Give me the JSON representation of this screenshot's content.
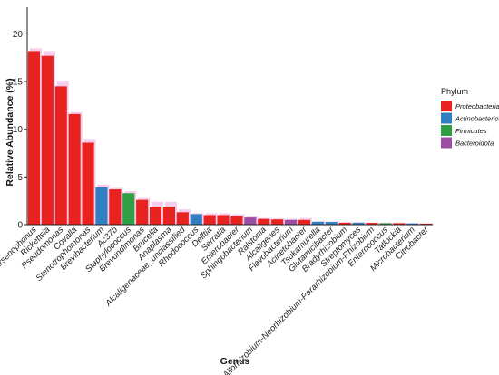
{
  "chart_data": {
    "type": "bar",
    "xlabel": "Genus",
    "ylabel": "Relative Abundance (%)",
    "ylim": [
      0,
      22.8
    ],
    "yticks": [
      0,
      5,
      10,
      15,
      20
    ],
    "grid": false,
    "legend_title": "Phylum",
    "legend_position": "right",
    "legend": [
      {
        "name": "Proteobacteria",
        "color": "#e8231f"
      },
      {
        "name": "Actinobacteriota",
        "color": "#2f7fc1"
      },
      {
        "name": "Firmicutes",
        "color": "#2ea043"
      },
      {
        "name": "Bacteroidota",
        "color": "#9b4ea3"
      }
    ],
    "categories": [
      "Arsenophonus",
      "Rickettsia",
      "Pseudomonas",
      "Covalla",
      "Stenotrophomonas",
      "Brevibacterium",
      "Ac37b",
      "Staphylococcus",
      "Brevundimonas",
      "Brucella",
      "Anaplasma",
      "Alcaligenaceae_unclassified",
      "Rhodococcus",
      "Delftia",
      "Serratia",
      "Enterobacter",
      "Sphingobacterium",
      "Ralstonia",
      "Alcaligenes",
      "Flavobacterium",
      "Acinetobacter",
      "Tsukamurella",
      "Glutamicibacter",
      "Bradyrhizobium",
      "Streptomyces",
      "Allorhizobium-Neorhizobium-Pararhizobium-Rhizobium",
      "Enterococcus",
      "Tatlockia",
      "Microbacterium",
      "Citrobacter"
    ],
    "phylum": [
      "Proteobacteria",
      "Proteobacteria",
      "Proteobacteria",
      "Proteobacteria",
      "Proteobacteria",
      "Actinobacteriota",
      "Proteobacteria",
      "Firmicutes",
      "Proteobacteria",
      "Proteobacteria",
      "Proteobacteria",
      "Proteobacteria",
      "Actinobacteriota",
      "Proteobacteria",
      "Proteobacteria",
      "Proteobacteria",
      "Bacteroidota",
      "Proteobacteria",
      "Proteobacteria",
      "Bacteroidota",
      "Proteobacteria",
      "Actinobacteriota",
      "Actinobacteriota",
      "Proteobacteria",
      "Actinobacteriota",
      "Proteobacteria",
      "Firmicutes",
      "Proteobacteria",
      "Actinobacteriota",
      "Proteobacteria"
    ],
    "values": [
      18.2,
      17.7,
      14.5,
      11.6,
      8.6,
      3.9,
      3.7,
      3.3,
      2.6,
      1.9,
      1.9,
      1.3,
      1.1,
      1.0,
      1.0,
      0.9,
      0.75,
      0.6,
      0.55,
      0.5,
      0.5,
      0.3,
      0.28,
      0.2,
      0.2,
      0.18,
      0.15,
      0.15,
      0.12,
      0.1
    ],
    "errors": [
      0.3,
      0.5,
      0.6,
      0.2,
      0.3,
      0.3,
      0.15,
      0.2,
      0.2,
      0.5,
      0.5,
      0.3,
      0.1,
      0.2,
      0.2,
      0.2,
      0.1,
      0.1,
      0.1,
      0.1,
      0.2,
      0.05,
      0.05,
      0.05,
      0.05,
      0.05,
      0.05,
      0.05,
      0.05,
      0.05
    ]
  }
}
